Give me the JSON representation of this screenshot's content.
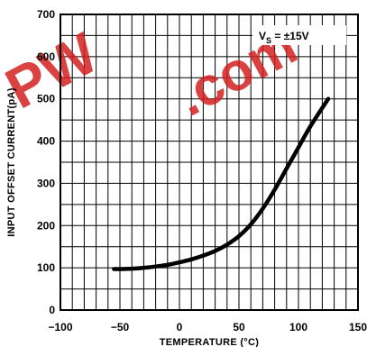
{
  "chart_data": {
    "type": "line",
    "title": "",
    "xlabel": "TEMPERATURE (°C)",
    "ylabel": "INPUT OFFSET CURRENT(pA)",
    "xlim": [
      -100,
      150
    ],
    "ylim": [
      0,
      700
    ],
    "x_ticks": [
      "−100",
      "−50",
      "0",
      "50",
      "100",
      "150"
    ],
    "y_ticks": [
      "0",
      "100",
      "200",
      "300",
      "400",
      "500",
      "600",
      "700"
    ],
    "grid": true,
    "annotation": "V_S = ±15V",
    "series": [
      {
        "color": "#000000",
        "x": [
          -55,
          -50,
          -40,
          -30,
          -20,
          -10,
          0,
          10,
          20,
          30,
          40,
          50,
          60,
          70,
          80,
          90,
          100,
          110,
          125
        ],
        "y": [
          97,
          97,
          98,
          100,
          103,
          107,
          113,
          120,
          129,
          140,
          155,
          175,
          203,
          240,
          285,
          335,
          385,
          435,
          500
        ]
      }
    ]
  },
  "annotation_parts": {
    "v": "V",
    "sub": "S",
    "rest": " = ±15V"
  },
  "watermark": {
    "text": "PW.com",
    "color": "#d42020"
  }
}
